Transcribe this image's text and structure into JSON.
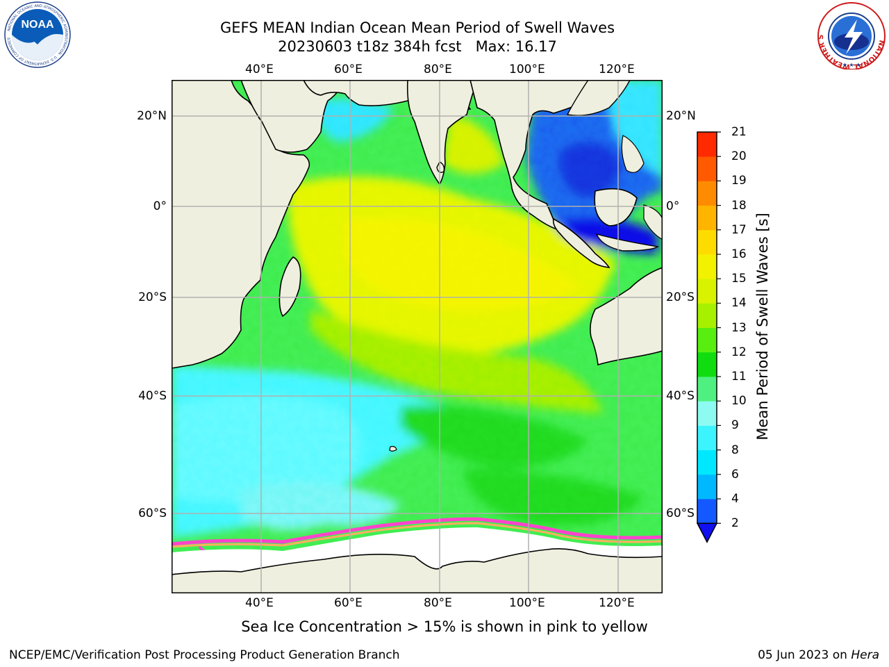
{
  "title": {
    "line1": "GEFS MEAN Indian Ocean Mean Period of Swell Waves",
    "line2": "20230603 t18z 384h fcst   Max: 16.17"
  },
  "logos": {
    "left": {
      "icon": "noaa-logo",
      "text": "NOAA",
      "ring_text": "NATIONAL OCEANIC AND ATMOSPHERIC ADMINISTRATION · U.S. DEPARTMENT OF COMMERCE"
    },
    "right": {
      "icon": "nws-logo",
      "ring_text": "NATIONAL WEATHER SERVICE"
    }
  },
  "map": {
    "lon_ticks": [
      "40°E",
      "60°E",
      "80°E",
      "100°E",
      "120°E"
    ],
    "lat_ticks": [
      "20°N",
      "0°",
      "20°S",
      "40°S",
      "60°S"
    ],
    "extent": {
      "lon": [
        20,
        130
      ],
      "lat": [
        -70,
        27
      ]
    },
    "colors": {
      "land": "#efefdf",
      "ice": "#ffffff",
      "grid": "#b0b0b0"
    }
  },
  "colorbar": {
    "label": "Mean Period of Swell Waves [s]",
    "levels": [
      "2",
      "4",
      "6",
      "8",
      "9",
      "10",
      "11",
      "12",
      "13",
      "14",
      "15",
      "16",
      "17",
      "18",
      "19",
      "20",
      "21"
    ],
    "colors": [
      "#1458ff",
      "#00b8ff",
      "#00e8ff",
      "#3cf4ff",
      "#8efbf2",
      "#50f080",
      "#10dd10",
      "#58ef10",
      "#a6f000",
      "#d8f200",
      "#f2f200",
      "#ffdc00",
      "#ffb400",
      "#ff8c00",
      "#ff5a00",
      "#ff2a00"
    ],
    "extend_color": "#1010f0"
  },
  "note": "Sea Ice Concentration > 15% is shown in pink to yellow",
  "footer": {
    "left": "NCEP/EMC/Verification Post Processing Product Generation Branch",
    "right_date": "05 Jun 2023 on ",
    "right_host": "Hera"
  }
}
